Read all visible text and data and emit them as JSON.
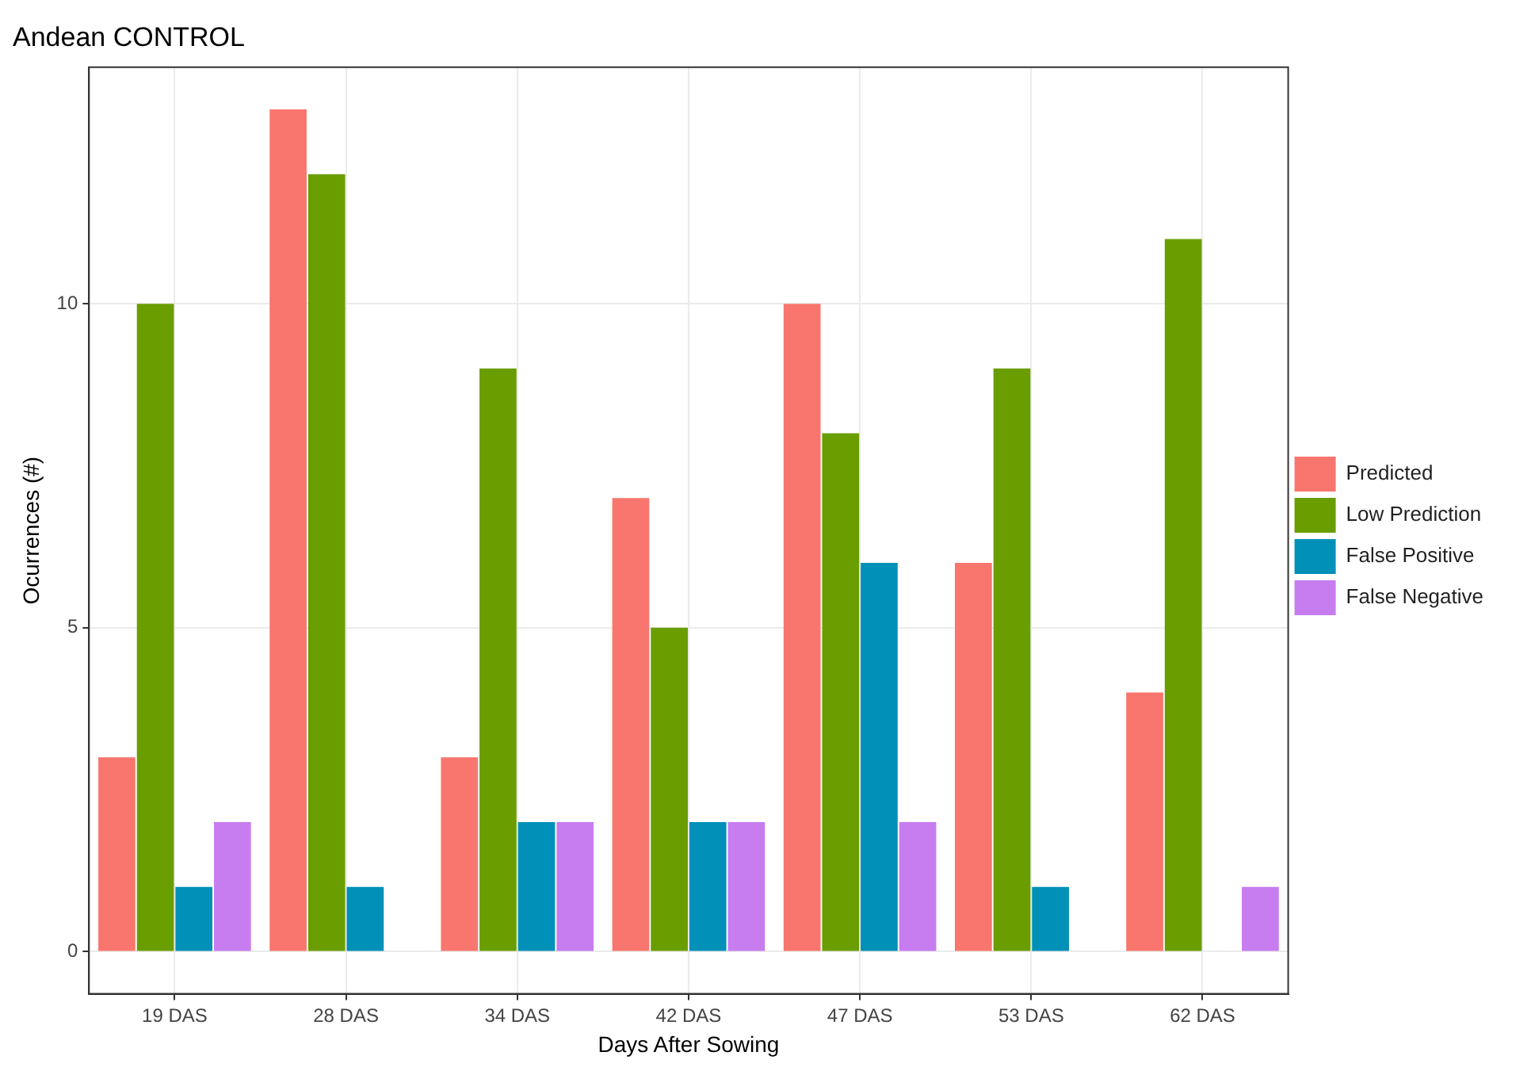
{
  "chart_data": {
    "type": "bar",
    "title": "Andean CONTROL",
    "xlabel": "Days After Sowing",
    "ylabel": "Ocurrences (#)",
    "categories": [
      "19 DAS",
      "28 DAS",
      "34 DAS",
      "42 DAS",
      "47 DAS",
      "53 DAS",
      "62 DAS"
    ],
    "series": [
      {
        "name": "Predicted",
        "color": "#f8766d",
        "values": [
          3,
          13,
          3,
          7,
          10,
          6,
          4
        ]
      },
      {
        "name": "Low Prediction",
        "color": "#6a9e00",
        "values": [
          10,
          12,
          9,
          5,
          8,
          9,
          11
        ]
      },
      {
        "name": "False Positive",
        "color": "#0090b8",
        "values": [
          1,
          1,
          2,
          2,
          6,
          1,
          0
        ]
      },
      {
        "name": "False Negative",
        "color": "#c77cf0",
        "values": [
          2,
          0,
          2,
          2,
          2,
          0,
          1
        ]
      }
    ],
    "ylim": [
      -0.65,
      13.65
    ],
    "yticks": [
      0,
      5,
      10
    ],
    "grid": true,
    "legend": "right"
  }
}
